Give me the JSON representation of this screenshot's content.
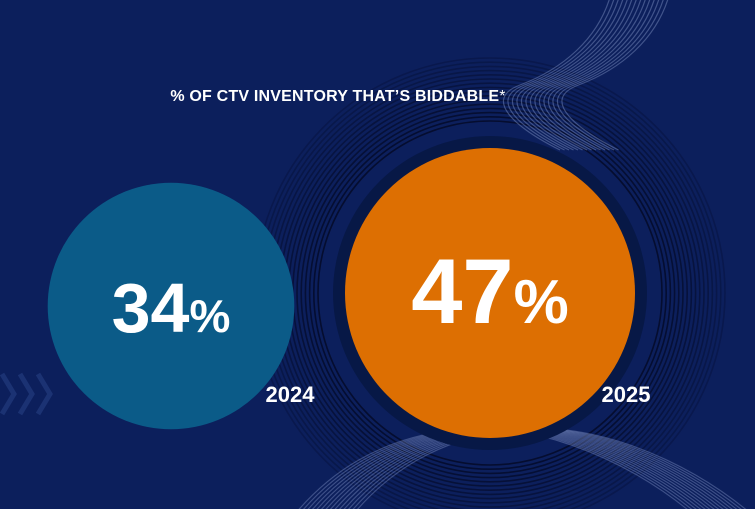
{
  "chart_data": {
    "type": "bubble",
    "title": "% OF CTV INVENTORY THAT’S BIDDABLE",
    "title_footnote_mark": "*",
    "categories": [
      "2024",
      "2025"
    ],
    "values": [
      34,
      47
    ],
    "value_suffix": "%",
    "colors": [
      "#0b5b88",
      "#dd6f02"
    ]
  },
  "colors": {
    "background": "#0c1f5c",
    "line_light": "#6d7fb3",
    "line_dark": "#040b2a"
  },
  "icons": {
    "decor_arrows": "triple-chevron-right-icon"
  }
}
